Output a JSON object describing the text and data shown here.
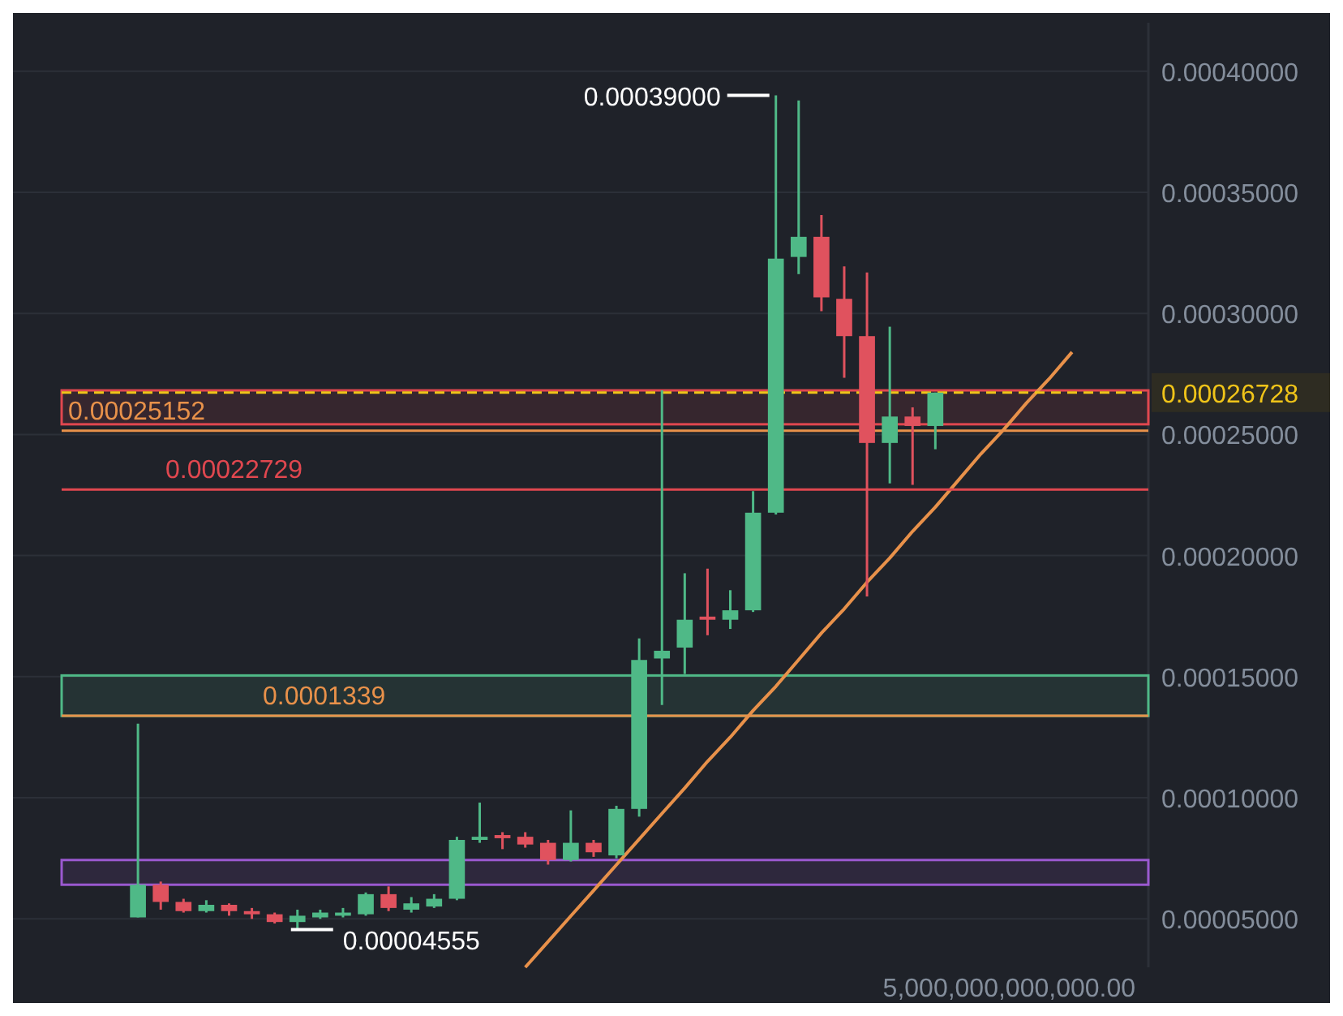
{
  "chart_data": {
    "type": "candlestick",
    "categories": [
      null,
      null,
      null,
      null,
      null,
      null,
      null,
      null,
      null,
      null,
      null,
      null,
      null,
      null,
      null,
      null,
      null,
      null,
      null,
      null,
      null,
      null,
      null,
      null,
      null,
      null,
      null,
      null,
      null,
      null,
      null,
      null,
      null,
      null,
      null,
      null,
      null,
      null,
      null,
      null,
      null,
      null
    ],
    "ohlc": [
      [
        5.06e-05,
        0.0001306,
        5.06e-05,
        6.41e-05
      ],
      [
        6.41e-05,
        6.54e-05,
        5.38e-05,
        5.7e-05
      ],
      [
        5.7e-05,
        5.83e-05,
        5.26e-05,
        5.32e-05
      ],
      [
        5.32e-05,
        5.77e-05,
        5.26e-05,
        5.58e-05
      ],
      [
        5.58e-05,
        5.64e-05,
        5.13e-05,
        5.32e-05
      ],
      [
        5.32e-05,
        5.45e-05,
        5e-05,
        5.19e-05
      ],
      [
        5.19e-05,
        5.26e-05,
        4.81e-05,
        4.87e-05
      ],
      [
        4.87e-05,
        5.38e-05,
        4.555e-05,
        5.13e-05
      ],
      [
        5.06e-05,
        5.38e-05,
        5e-05,
        5.26e-05
      ],
      [
        5.13e-05,
        5.45e-05,
        5.06e-05,
        5.26e-05
      ],
      [
        5.19e-05,
        6.09e-05,
        5.13e-05,
        6.02e-05
      ],
      [
        6.02e-05,
        6.34e-05,
        5.32e-05,
        5.45e-05
      ],
      [
        5.38e-05,
        5.9e-05,
        5.26e-05,
        5.64e-05
      ],
      [
        5.51e-05,
        6.02e-05,
        5.45e-05,
        5.83e-05
      ],
      [
        5.83e-05,
        8.39e-05,
        5.77e-05,
        8.26e-05
      ],
      [
        8.26e-05,
        9.8e-05,
        8.14e-05,
        8.39e-05
      ],
      [
        8.46e-05,
        8.58e-05,
        7.88e-05,
        8.33e-05
      ],
      [
        8.39e-05,
        8.58e-05,
        7.94e-05,
        8.07e-05
      ],
      [
        8.14e-05,
        8.26e-05,
        7.24e-05,
        7.43e-05
      ],
      [
        7.43e-05,
        9.48e-05,
        7.37e-05,
        8.14e-05
      ],
      [
        8.14e-05,
        8.26e-05,
        7.56e-05,
        7.75e-05
      ],
      [
        7.62e-05,
        9.67e-05,
        7.5e-05,
        9.54e-05
      ],
      [
        9.54e-05,
        0.0001658,
        9.22e-05,
        0.0001569
      ],
      [
        0.0001575,
        0.0002682,
        0.0001383,
        0.0001607
      ],
      [
        0.000162,
        0.0001927,
        0.0001511,
        0.0001735
      ],
      [
        0.0001748,
        0.0001946,
        0.0001671,
        0.0001735
      ],
      [
        0.0001735,
        0.0001857,
        0.0001697,
        0.0001774
      ],
      [
        0.0001774,
        0.0002266,
        0.0001767,
        0.0002177
      ],
      [
        0.0002177,
        0.00039,
        0.000217,
        0.0003226
      ],
      [
        0.0003233,
        0.0003879,
        0.0003162,
        0.0003316
      ],
      [
        0.0003316,
        0.0003406,
        0.0003009,
        0.0003066
      ],
      [
        0.000306,
        0.0003194,
        0.0002734,
        0.0002906
      ],
      [
        0.0002906,
        0.0003169,
        0.0001831,
        0.0002465
      ],
      [
        0.0002465,
        0.0002945,
        0.0002298,
        0.0002574
      ],
      [
        0.0002574,
        0.0002612,
        0.0002292,
        0.0002535
      ],
      [
        0.0002535,
        0.00026728,
        0.0002439,
        0.00026728
      ],
      null,
      null,
      null,
      null,
      null,
      null
    ],
    "series": [
      {
        "type": "line",
        "color": "#e8914a",
        "values": [
          null,
          null,
          null,
          null,
          null,
          null,
          null,
          null,
          null,
          null,
          null,
          null,
          null,
          null,
          null,
          null,
          null,
          3e-05,
          4.06e-05,
          5.12e-05,
          6.17e-05,
          7.23e-05,
          8.29e-05,
          9.35e-05,
          0.000104,
          0.000115,
          0.000125,
          0.000136,
          0.000146,
          0.000157,
          0.000168,
          0.000178,
          0.000189,
          0.000199,
          0.00021,
          0.00022,
          0.000231,
          0.000242,
          0.000252,
          0.000263,
          0.000273,
          0.000284
        ]
      }
    ],
    "ylim": [
      3e-05,
      0.00042
    ],
    "yticks": [
      {
        "value": 5e-05,
        "label": "0.00005000"
      },
      {
        "value": 0.0001,
        "label": "0.00010000"
      },
      {
        "value": 0.00015,
        "label": "0.00015000"
      },
      {
        "value": 0.0002,
        "label": "0.00020000"
      },
      {
        "value": 0.00025,
        "label": "0.00025000"
      },
      {
        "value": 0.0003,
        "label": "0.00030000"
      },
      {
        "value": 0.00035,
        "label": "0.00035000"
      },
      {
        "value": 0.0004,
        "label": "0.00040000"
      }
    ],
    "grid": "y",
    "tick_labels": "y",
    "ref_lines": [
      {
        "axis": "y",
        "value": 0.00025152,
        "label": "0.00025152",
        "color": "#e8914a"
      },
      {
        "axis": "y",
        "value": 0.00022729,
        "label": "0.00022729",
        "color": "#e0474f"
      },
      {
        "axis": "y",
        "value": 0.0001339,
        "label": "0.0001339",
        "color": "#e8914a"
      },
      {
        "axis": "y",
        "value": 0.00026728,
        "label": "0.00026728",
        "color": "#f0c419",
        "line_style": "dashed"
      }
    ],
    "bands": [
      {
        "axis": "y",
        "from": 6.41e-05,
        "to": 7.43e-05,
        "color": "#9b59d0"
      },
      {
        "axis": "y",
        "from": 0.0001338,
        "to": 0.0001505,
        "color": "#4fb987"
      },
      {
        "axis": "y",
        "from": 0.0002542,
        "to": 0.0002682,
        "color": "#e0474f"
      }
    ],
    "annotations": [
      "0.00039000",
      "0.00004555",
      "5,000,000,000,000.00"
    ]
  }
}
